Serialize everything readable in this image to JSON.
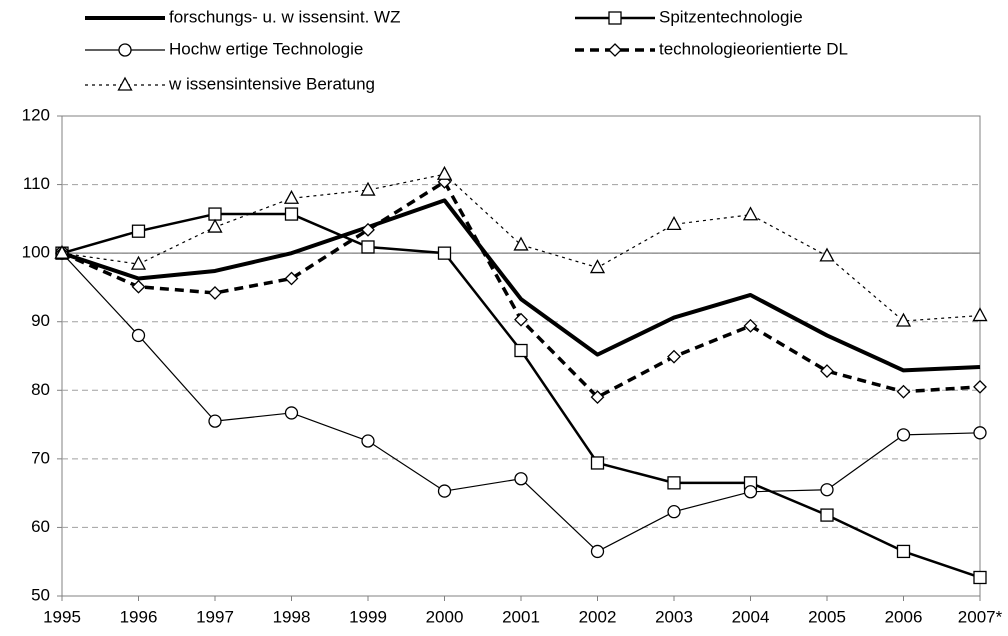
{
  "chart_data": {
    "type": "line",
    "categories": [
      "1995",
      "1996",
      "1997",
      "1998",
      "1999",
      "2000",
      "2001",
      "2002",
      "2003",
      "2004",
      "2005",
      "2006",
      "2007*"
    ],
    "ylim": [
      50,
      120
    ],
    "yticks": [
      50,
      60,
      70,
      80,
      90,
      100,
      110,
      120
    ],
    "grid": true,
    "reference_line": 100,
    "series": [
      {
        "name": "forschungs- u. w issensint. WZ",
        "color": "#000000",
        "line_width": 4,
        "dash": "none",
        "marker": "none",
        "values": [
          100,
          96.3,
          97.4,
          100,
          103.8,
          107.7,
          93.3,
          85.2,
          90.6,
          93.9,
          88,
          82.9,
          83.4
        ]
      },
      {
        "name": "Spitzentechnologie",
        "color": "#000000",
        "line_width": 2.5,
        "dash": "none",
        "marker": "square",
        "values": [
          100,
          103.2,
          105.7,
          105.7,
          100.9,
          100,
          85.8,
          69.4,
          66.5,
          66.5,
          61.8,
          56.5,
          52.7
        ]
      },
      {
        "name": "Hochw ertige Technologie",
        "color": "#000000",
        "line_width": 1.2,
        "dash": "none",
        "marker": "circle",
        "values": [
          100,
          88,
          75.5,
          76.7,
          72.6,
          65.3,
          67.1,
          56.5,
          62.3,
          65.2,
          65.5,
          73.5,
          73.8
        ]
      },
      {
        "name": "technologieorientierte DL",
        "color": "#000000",
        "line_width": 3.5,
        "dash": "9,6",
        "marker": "diamond",
        "values": [
          100,
          95.1,
          94.2,
          96.3,
          103.4,
          110.4,
          90.3,
          79,
          84.9,
          89.4,
          82.8,
          79.8,
          80.5
        ]
      },
      {
        "name": "w issensintensive Beratung",
        "color": "#000000",
        "line_width": 1.2,
        "dash": "3,4",
        "marker": "triangle",
        "values": [
          100,
          98.4,
          103.8,
          108,
          109.2,
          111.5,
          101.2,
          97.9,
          104.2,
          105.6,
          99.6,
          90.1,
          90.9
        ]
      }
    ]
  }
}
